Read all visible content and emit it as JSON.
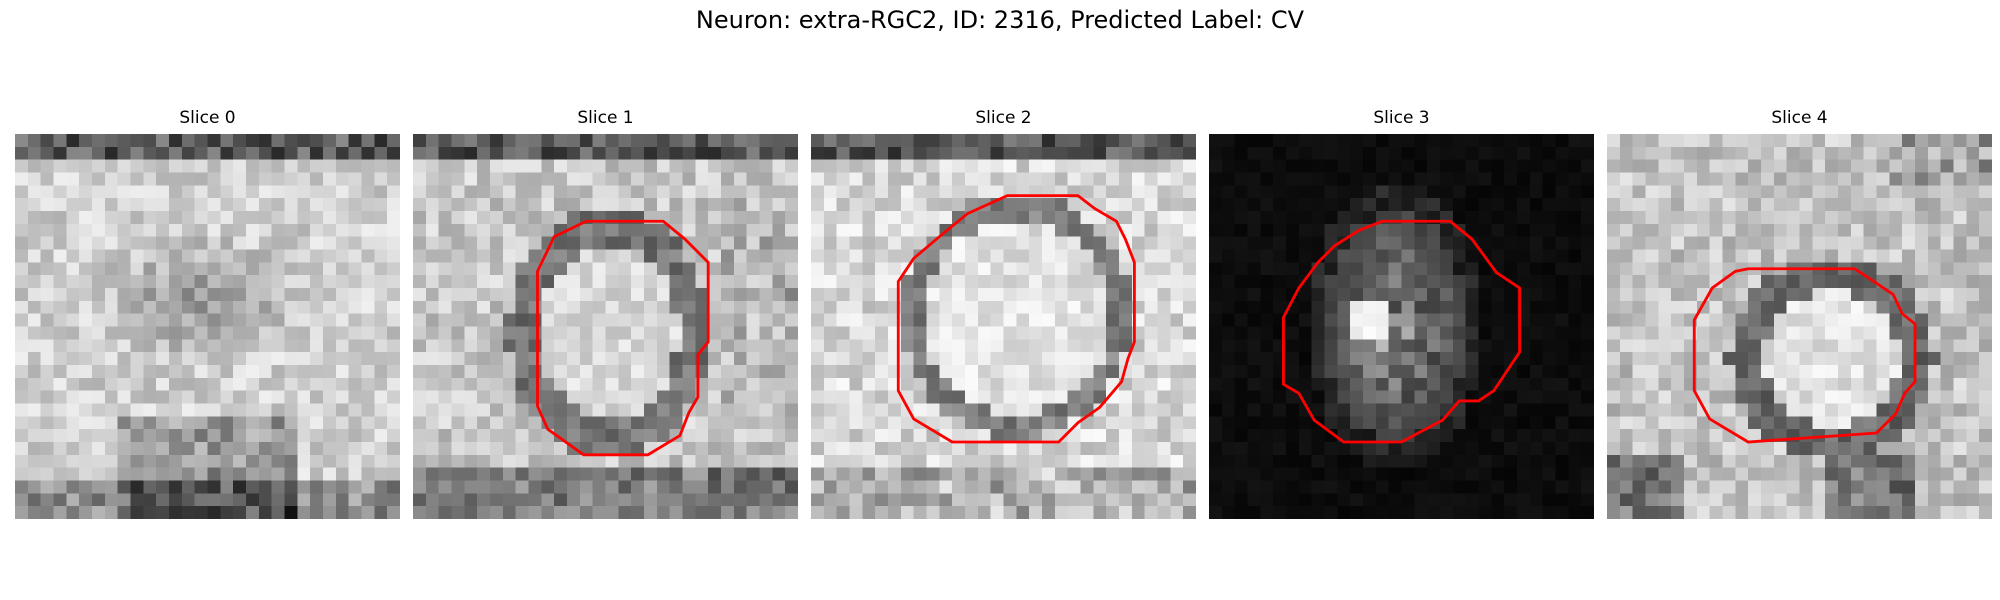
{
  "figure": {
    "title": "Neuron: extra-RGC2, ID: 2316, Predicted Label: CV"
  },
  "contour_color": "#ff0000",
  "colormap": "gray",
  "panels": [
    {
      "title": "Slice 0",
      "show_contour": false
    },
    {
      "title": "Slice 1",
      "show_contour": true
    },
    {
      "title": "Slice 2",
      "show_contour": true
    },
    {
      "title": "Slice 3",
      "show_contour": true
    },
    {
      "title": "Slice 4",
      "show_contour": true
    }
  ]
}
